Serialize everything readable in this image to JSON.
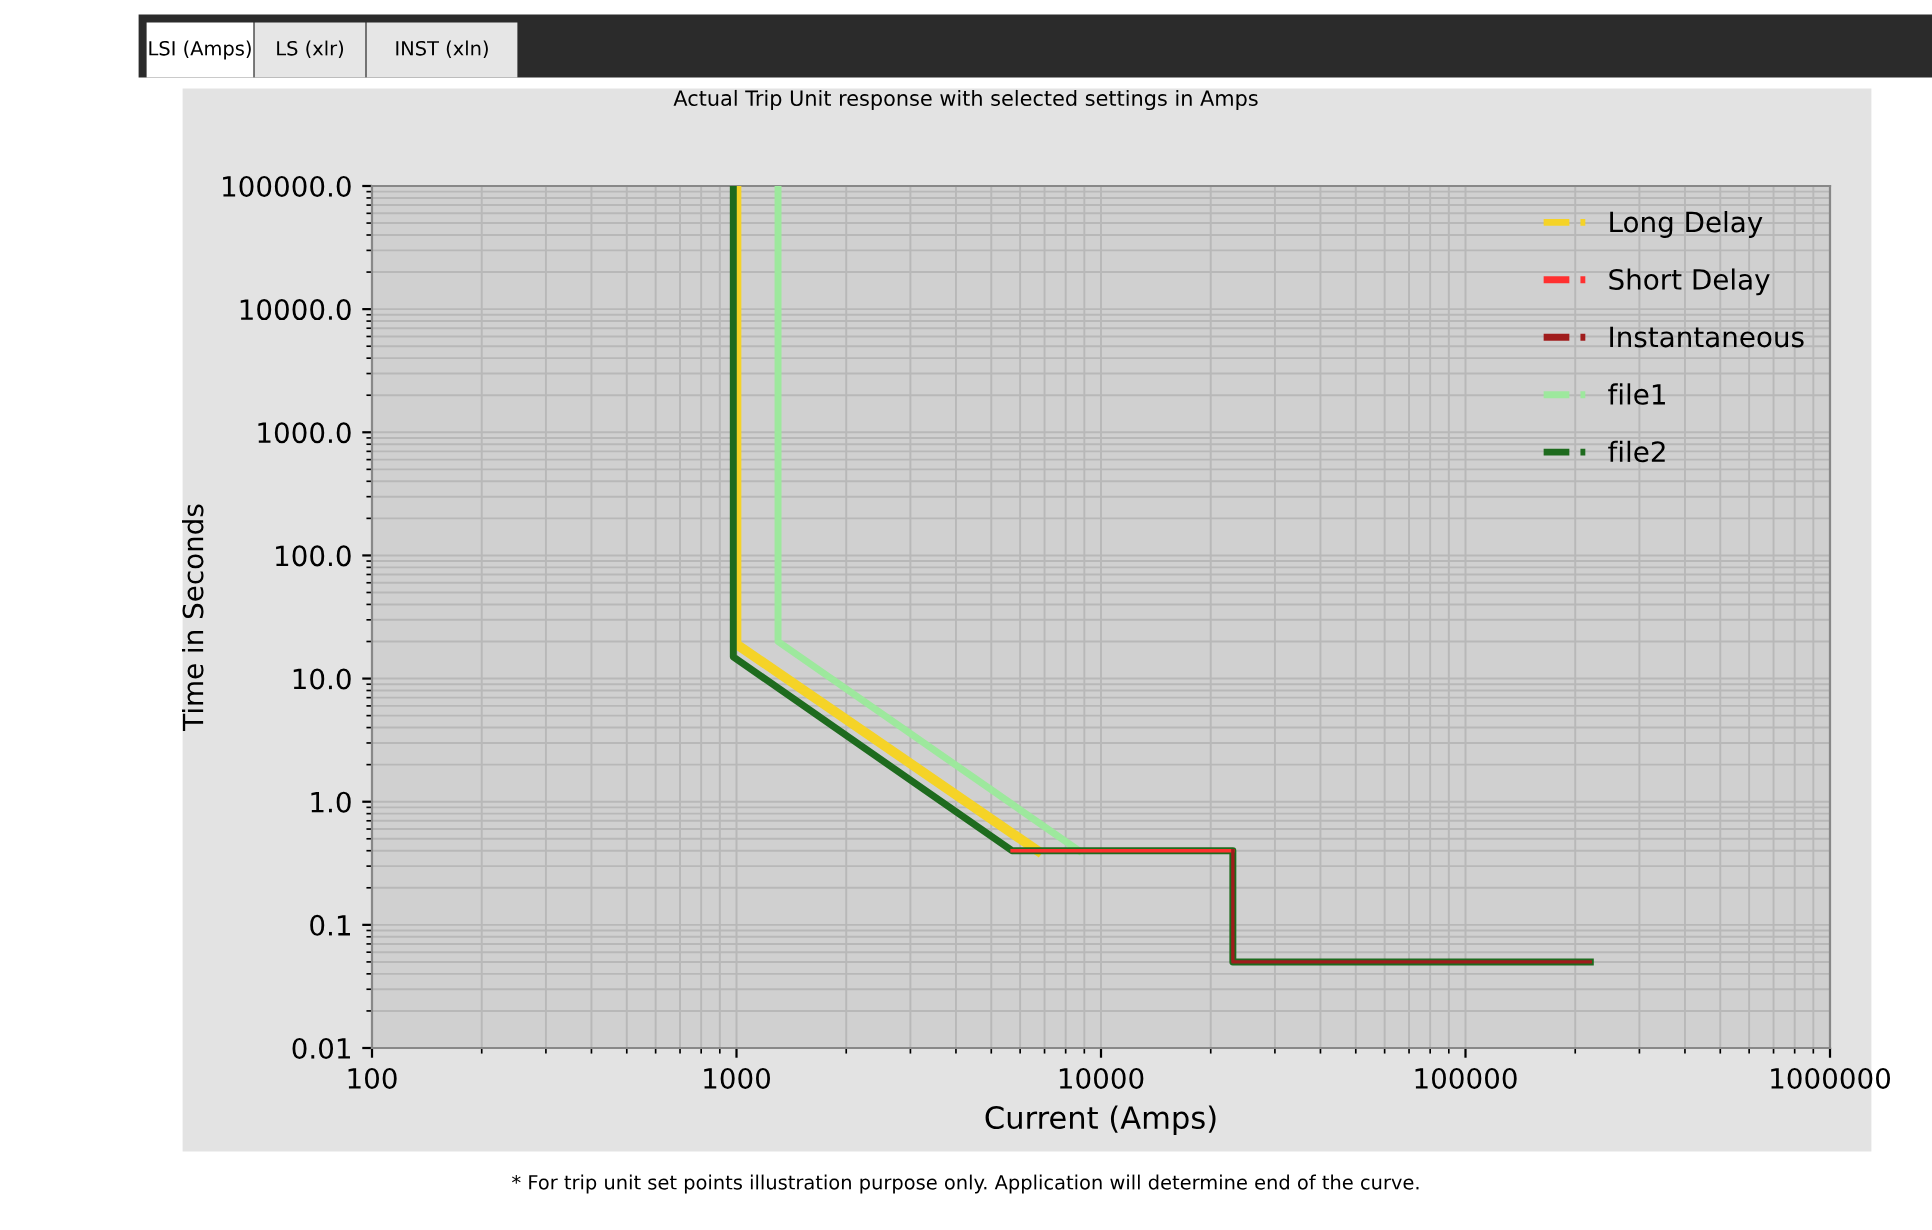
{
  "chart_data": {
    "type": "line",
    "title": "Actual Trip Unit response with selected settings in Amps",
    "xlabel": "Current (Amps)",
    "ylabel": "Time in Seconds",
    "annotations": [
      "LSI (Amps)",
      "LS (xlr)",
      "INST (xln)",
      "* For trip unit set points illustration purpose only. Application will determine end of the curve."
    ],
    "log": "xy",
    "grid": true,
    "legend": "top right",
    "line_style": "solid",
    "marker": "none",
    "xlim": [
      100,
      1000000
    ],
    "xticks": [
      100,
      1000,
      10000,
      100000,
      1000000
    ],
    "ylim": [
      0.01,
      100000
    ],
    "yticks": [
      0.01,
      0.1,
      {
        "value": 1,
        "label": "1.0"
      },
      {
        "value": 10,
        "label": "10.0"
      },
      {
        "value": 100,
        "label": "100.0"
      },
      {
        "value": 1000,
        "label": "1000.0"
      },
      {
        "value": 10000,
        "label": "10000.0"
      },
      {
        "value": 100000,
        "label": "100000.0"
      }
    ],
    "series": [
      {
        "name": "Long Delay",
        "color": "#f5d327",
        "x": [
          1000,
          1000,
          6700
        ],
        "values": [
          100000,
          19,
          0.4
        ]
      },
      {
        "name": "Short Delay",
        "color": "#ff3030",
        "x": [
          5700,
          23000
        ],
        "values": [
          0.4,
          0.4
        ]
      },
      {
        "name": "Instantaneous",
        "color": "#a01c1c",
        "x": [
          23000,
          23000,
          220000
        ],
        "values": [
          0.4,
          0.05,
          0.05
        ]
      },
      {
        "name": "file1",
        "color": "#9de89d",
        "x": [
          1300,
          1300,
          8700
        ],
        "values": [
          100000,
          20,
          0.4
        ]
      },
      {
        "name": "file2",
        "color": "#1e6b1e",
        "x": [
          980,
          980,
          5700,
          23000,
          23000,
          220000
        ],
        "values": [
          100000,
          15,
          0.4,
          0.4,
          0.05,
          0.05
        ]
      }
    ]
  }
}
